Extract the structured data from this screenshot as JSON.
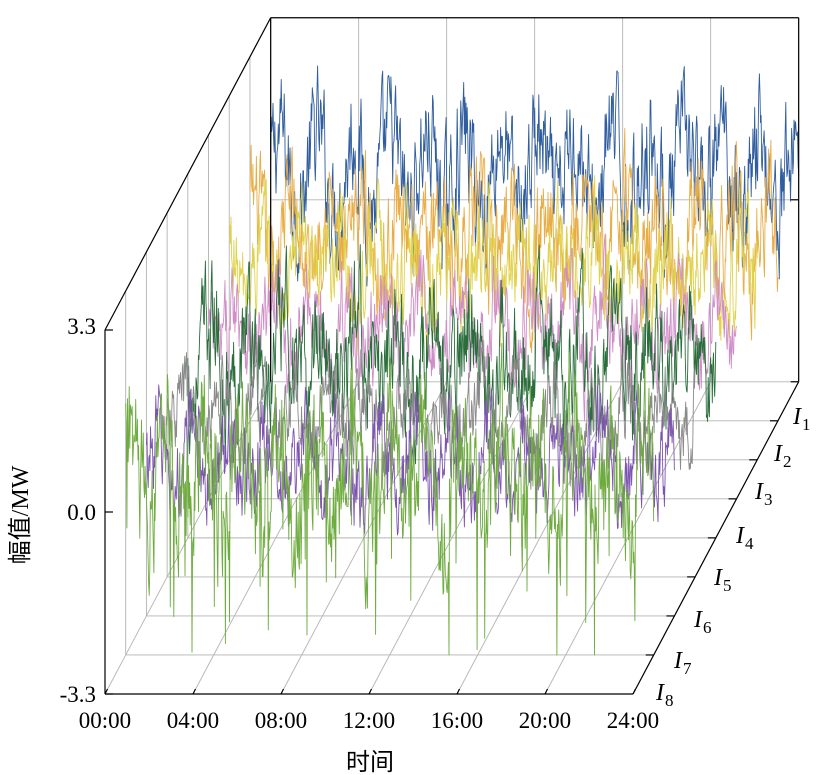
{
  "chart_data": {
    "type": "line",
    "xlabel": "时间",
    "ylabel": "幅值/MW",
    "x_ticks": [
      "00:00",
      "04:00",
      "08:00",
      "12:00",
      "16:00",
      "20:00",
      "24:00"
    ],
    "y_ticks": [
      "-3.3",
      "0.0",
      "3.3"
    ],
    "ylim": [
      -3.3,
      3.3
    ],
    "grid": true,
    "series": [
      {
        "name": "I1",
        "color": "#2f5d9e",
        "mean": 0.5,
        "amplitude": 1.2
      },
      {
        "name": "I2",
        "color": "#e8ad47",
        "mean": 0.1,
        "amplitude": 1.1
      },
      {
        "name": "I3",
        "color": "#e0d24a",
        "mean": 0.2,
        "amplitude": 1.0
      },
      {
        "name": "I4",
        "color": "#d08ec8",
        "mean": -0.2,
        "amplitude": 0.9
      },
      {
        "name": "I5",
        "color": "#2a6e3c",
        "mean": 0.0,
        "amplitude": 1.2
      },
      {
        "name": "I6",
        "color": "#8a8a8a",
        "mean": -0.4,
        "amplitude": 0.8
      },
      {
        "name": "I7",
        "color": "#7d55b0",
        "mean": -0.5,
        "amplitude": 0.9
      },
      {
        "name": "I8",
        "color": "#6fac3f",
        "mean": 0.0,
        "amplitude": 1.4
      }
    ],
    "series_labels": [
      {
        "letter": "I",
        "sub": "1"
      },
      {
        "letter": "I",
        "sub": "2"
      },
      {
        "letter": "I",
        "sub": "3"
      },
      {
        "letter": "I",
        "sub": "4"
      },
      {
        "letter": "I",
        "sub": "5"
      },
      {
        "letter": "I",
        "sub": "6"
      },
      {
        "letter": "I",
        "sub": "7"
      },
      {
        "letter": "I",
        "sub": "8"
      }
    ]
  }
}
